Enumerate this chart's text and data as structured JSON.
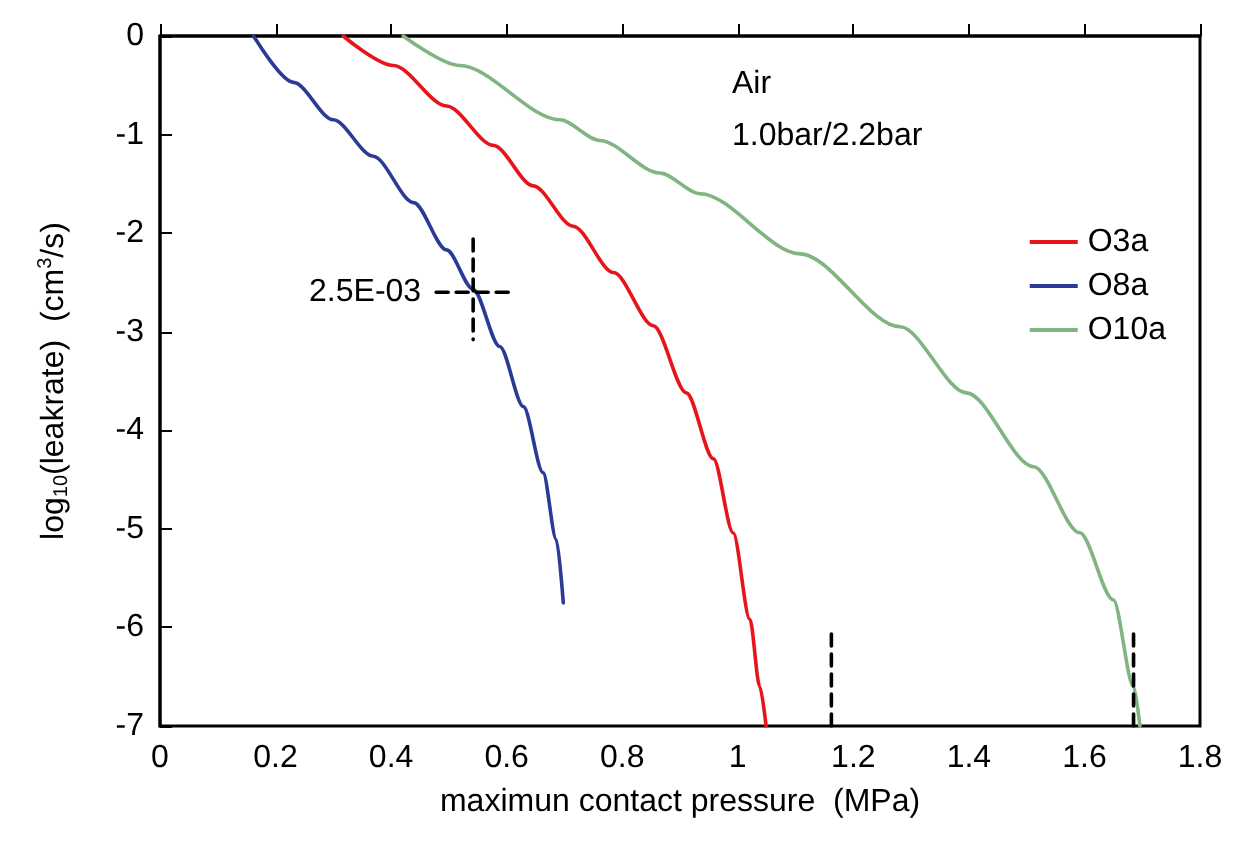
{
  "chart_data": {
    "type": "line",
    "xlabel": "maximun contact pressure  (MPa)",
    "ylabel": "log$_{10}$(leakrate)  (cm$^{3}$/s)",
    "annotations": [
      "Air",
      "1.0bar/2.2bar",
      {
        "text": "2.5E-03",
        "x": 0.542,
        "y": -2.6
      }
    ],
    "series": [
      {
        "name": "O3a",
        "color": "#e8141b",
        "x": [
          0.317,
          0.404,
          0.496,
          0.577,
          0.646,
          0.715,
          0.785,
          0.854,
          0.911,
          0.958,
          0.992,
          1.021,
          1.038,
          1.049
        ],
        "values": [
          0,
          -0.3,
          -0.71,
          -1.11,
          -1.52,
          -1.93,
          -2.4,
          -2.94,
          -3.62,
          -4.29,
          -5.04,
          -5.92,
          -6.6,
          -7
        ]
      },
      {
        "name": "O8a",
        "color": "#2b3a96",
        "x": [
          0.162,
          0.231,
          0.3,
          0.369,
          0.439,
          0.496,
          0.542,
          0.588,
          0.629,
          0.663,
          0.686,
          0.698
        ],
        "values": [
          0,
          -0.47,
          -0.85,
          -1.22,
          -1.69,
          -2.17,
          -2.57,
          -3.15,
          -3.76,
          -4.43,
          -5.11,
          -5.75
        ]
      },
      {
        "name": "O10a",
        "color": "#80b480",
        "x": [
          0.421,
          0.519,
          0.692,
          0.761,
          0.865,
          0.935,
          1.108,
          1.281,
          1.396,
          1.512,
          1.592,
          1.65,
          1.685,
          1.696
        ],
        "values": [
          0,
          -0.3,
          -0.85,
          -1.06,
          -1.39,
          -1.6,
          -2.21,
          -2.95,
          -3.62,
          -4.37,
          -5.04,
          -5.72,
          -6.6,
          -7
        ]
      },
      {
        "color": "#000000",
        "line_style": "dashed",
        "x": [
          0.542,
          0.542
        ],
        "values": [
          -2.06,
          -3.08
        ]
      },
      {
        "color": "#000000",
        "line_style": "dashed",
        "x": [
          0.478,
          0.616
        ],
        "values": [
          -2.6,
          -2.6
        ]
      },
      {
        "color": "#000000",
        "line_style": "dashed",
        "x": [
          1.162,
          1.162
        ],
        "values": [
          -7,
          -6
        ]
      },
      {
        "color": "#000000",
        "line_style": "dashed",
        "x": [
          1.685,
          1.685
        ],
        "values": [
          -7,
          -6
        ]
      }
    ],
    "xlim": [
      0,
      1.8
    ],
    "xticks": [
      0,
      0.2,
      0.4,
      0.6,
      0.8,
      1,
      1.2,
      1.4,
      1.6,
      1.8
    ],
    "ylim": [
      -7,
      0
    ],
    "yticks": [
      -7,
      -6,
      -5,
      -4,
      -3,
      -2,
      -1,
      0
    ],
    "grid": false,
    "legend": "top right",
    "marker": "none",
    "line_style": "solid"
  }
}
